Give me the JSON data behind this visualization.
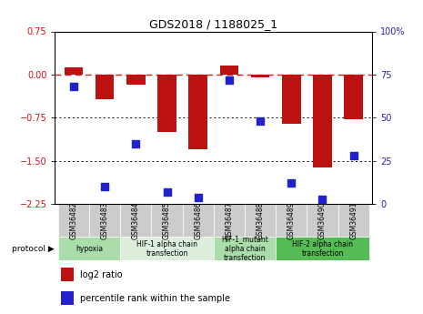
{
  "title": "GDS2018 / 1188025_1",
  "samples": [
    "GSM36482",
    "GSM36483",
    "GSM36484",
    "GSM36485",
    "GSM36486",
    "GSM36487",
    "GSM36488",
    "GSM36489",
    "GSM36490",
    "GSM36491"
  ],
  "log2_ratio": [
    0.12,
    -0.42,
    -0.18,
    -1.0,
    -1.3,
    0.15,
    -0.05,
    -0.85,
    -1.62,
    -0.78
  ],
  "percentile_rank": [
    68,
    10,
    35,
    7,
    4,
    72,
    48,
    12,
    3,
    28
  ],
  "ylim_left": [
    -2.25,
    0.75
  ],
  "ylim_right": [
    0,
    100
  ],
  "yticks_left": [
    0.75,
    0,
    -0.75,
    -1.5,
    -2.25
  ],
  "yticks_right": [
    100,
    75,
    50,
    25,
    0
  ],
  "hline_dashed": 0,
  "hlines_dotted": [
    -0.75,
    -1.5
  ],
  "bar_color": "#BB1111",
  "dot_color": "#2222CC",
  "protocol_groups": [
    {
      "label": "hypoxia",
      "start": 0,
      "end": 2,
      "color": "#AADDAA"
    },
    {
      "label": "HIF-1 alpha chain\ntransfection",
      "start": 2,
      "end": 5,
      "color": "#DDEEDD"
    },
    {
      "label": "HIF-1_mutant\nalpha chain\ntransfection",
      "start": 5,
      "end": 7,
      "color": "#AADDAA"
    },
    {
      "label": "HIF-2 alpha chain\ntransfection",
      "start": 7,
      "end": 10,
      "color": "#55BB55"
    }
  ],
  "protocol_label": "protocol",
  "legend_items": [
    {
      "color": "#BB1111",
      "label": "log2 ratio"
    },
    {
      "color": "#2222CC",
      "label": "percentile rank within the sample"
    }
  ],
  "sample_box_color": "#CCCCCC",
  "bar_width": 0.6,
  "dot_size": 28,
  "title_fontsize": 9,
  "tick_fontsize": 7,
  "sample_fontsize": 5.5,
  "proto_fontsize": 5.5,
  "legend_fontsize": 7,
  "tick_label_color_left": "#CC1111",
  "tick_label_color_right": "#2222BB"
}
